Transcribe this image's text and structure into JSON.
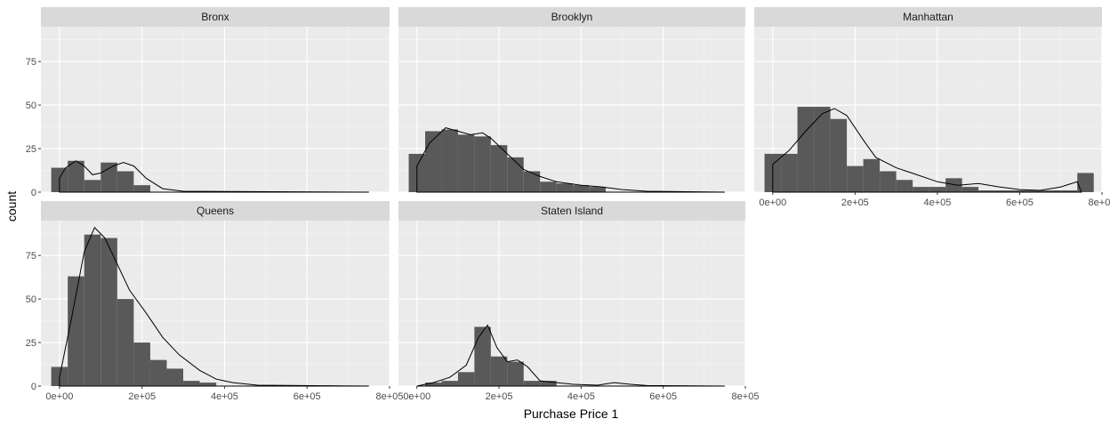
{
  "chart_data": {
    "type": "histogram",
    "xlabel": "Purchase Price 1",
    "ylabel": "count",
    "x_ticks": [
      "0e+00",
      "2e+05",
      "4e+05",
      "6e+05",
      "8e+05"
    ],
    "x_tick_values": [
      0,
      200000,
      400000,
      600000,
      800000
    ],
    "y_ticks": [
      "0",
      "25",
      "50",
      "75"
    ],
    "y_tick_values": [
      0,
      25,
      50,
      75
    ],
    "xlim": [
      -45000,
      800000
    ],
    "ylim": [
      0,
      95
    ],
    "bin_width": 40000,
    "bin_starts": [
      -20000,
      20000,
      60000,
      100000,
      140000,
      180000,
      220000,
      260000,
      300000,
      340000,
      380000,
      420000,
      460000,
      500000,
      540000,
      580000,
      620000,
      660000,
      700000,
      740000
    ],
    "fill_color": "#595959",
    "panel_background": "#ebebeb",
    "strip_background": "#d9d9d9",
    "panels": [
      {
        "name": "Bronx",
        "counts": [
          14,
          18,
          7,
          17,
          12,
          4,
          0,
          0,
          0,
          0,
          0,
          0,
          0,
          0,
          0,
          0,
          0,
          0,
          0,
          0
        ],
        "density": [
          [
            0,
            8
          ],
          [
            15000,
            14
          ],
          [
            40000,
            18
          ],
          [
            60000,
            15
          ],
          [
            80000,
            10
          ],
          [
            100000,
            11
          ],
          [
            130000,
            15
          ],
          [
            155000,
            17
          ],
          [
            180000,
            15
          ],
          [
            210000,
            8
          ],
          [
            250000,
            2
          ],
          [
            300000,
            0.5
          ],
          [
            750000,
            0
          ]
        ]
      },
      {
        "name": "Brooklyn",
        "counts": [
          22,
          35,
          36,
          33,
          32,
          27,
          20,
          12,
          6,
          5,
          4,
          3,
          0,
          0,
          0,
          0,
          0,
          0,
          0,
          0
        ],
        "density": [
          [
            0,
            15
          ],
          [
            30000,
            28
          ],
          [
            70000,
            37
          ],
          [
            100000,
            35
          ],
          [
            130000,
            33
          ],
          [
            160000,
            34
          ],
          [
            180000,
            31
          ],
          [
            220000,
            22
          ],
          [
            260000,
            13
          ],
          [
            300000,
            9
          ],
          [
            340000,
            6
          ],
          [
            400000,
            4
          ],
          [
            450000,
            3
          ],
          [
            500000,
            1.5
          ],
          [
            560000,
            0.5
          ],
          [
            750000,
            0
          ]
        ]
      },
      {
        "name": "Manhattan",
        "counts": [
          22,
          22,
          49,
          49,
          42,
          15,
          19,
          12,
          7,
          3,
          3,
          8,
          3,
          1,
          1,
          1,
          1,
          1,
          1,
          11
        ],
        "density": [
          [
            0,
            16
          ],
          [
            40000,
            24
          ],
          [
            80000,
            35
          ],
          [
            120000,
            45
          ],
          [
            150000,
            48
          ],
          [
            180000,
            44
          ],
          [
            220000,
            30
          ],
          [
            250000,
            20
          ],
          [
            300000,
            14
          ],
          [
            350000,
            10
          ],
          [
            400000,
            6
          ],
          [
            450000,
            4
          ],
          [
            500000,
            5
          ],
          [
            550000,
            3
          ],
          [
            600000,
            1.5
          ],
          [
            650000,
            1
          ],
          [
            700000,
            3
          ],
          [
            740000,
            6
          ],
          [
            750000,
            0
          ]
        ]
      },
      {
        "name": "Queens",
        "counts": [
          11,
          63,
          87,
          85,
          50,
          25,
          15,
          10,
          3,
          2,
          0,
          0,
          0,
          0,
          0,
          0,
          0,
          0,
          0,
          0
        ],
        "density": [
          [
            0,
            5
          ],
          [
            30000,
            40
          ],
          [
            60000,
            77
          ],
          [
            85000,
            91
          ],
          [
            110000,
            85
          ],
          [
            140000,
            70
          ],
          [
            170000,
            55
          ],
          [
            210000,
            42
          ],
          [
            250000,
            28
          ],
          [
            290000,
            18
          ],
          [
            340000,
            9
          ],
          [
            380000,
            4
          ],
          [
            420000,
            2
          ],
          [
            480000,
            0.5
          ],
          [
            750000,
            0
          ]
        ]
      },
      {
        "name": "Staten Island",
        "counts": [
          0,
          2,
          3,
          8,
          34,
          17,
          14,
          3,
          3,
          0,
          0,
          0,
          0,
          0,
          0,
          0,
          0,
          0,
          0,
          0
        ],
        "density": [
          [
            0,
            0
          ],
          [
            40000,
            2
          ],
          [
            80000,
            5
          ],
          [
            120000,
            12
          ],
          [
            150000,
            28
          ],
          [
            172000,
            35
          ],
          [
            195000,
            22
          ],
          [
            220000,
            14
          ],
          [
            245000,
            15
          ],
          [
            270000,
            11
          ],
          [
            300000,
            3
          ],
          [
            340000,
            2
          ],
          [
            380000,
            1
          ],
          [
            440000,
            0.5
          ],
          [
            480000,
            2
          ],
          [
            520000,
            1
          ],
          [
            560000,
            0.3
          ],
          [
            750000,
            0
          ]
        ]
      }
    ]
  }
}
